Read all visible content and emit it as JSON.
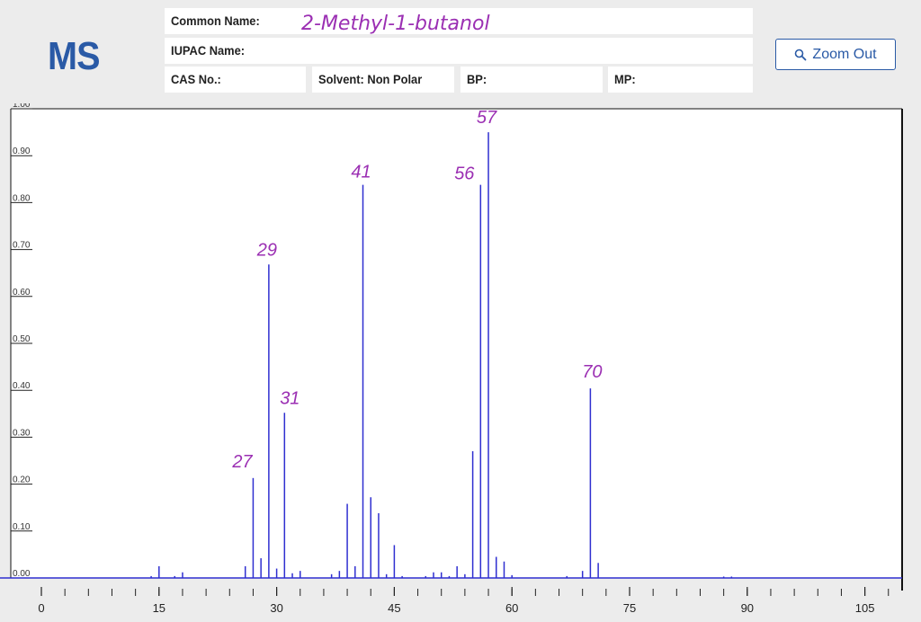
{
  "header": {
    "logo": "MS",
    "common_name_label": "Common Name:",
    "common_name_value": "2-Methyl-1-butanol",
    "iupac_label": "IUPAC Name:",
    "cas_label": "CAS No.:",
    "solvent_label": "Solvent: Non Polar",
    "bp_label": "BP:",
    "mp_label": "MP:"
  },
  "toolbar": {
    "zoom_out_label": "Zoom Out",
    "zoom_icon": "search-icon"
  },
  "chart_data": {
    "type": "bar",
    "title": "",
    "xlabel": "",
    "ylabel": "",
    "xlim": [
      0,
      110
    ],
    "ylim": [
      0,
      1.0
    ],
    "x_ticks": [
      0,
      15,
      30,
      45,
      60,
      75,
      90,
      105
    ],
    "y_ticks": [
      "0.00",
      "0.10",
      "0.20",
      "0.30",
      "0.40",
      "0.50",
      "0.60",
      "0.70",
      "0.80",
      "0.90",
      "1.00"
    ],
    "color": "#2f2fd0",
    "peaks": [
      {
        "mz": 14,
        "intensity": 0.004
      },
      {
        "mz": 15,
        "intensity": 0.025
      },
      {
        "mz": 17,
        "intensity": 0.004
      },
      {
        "mz": 18,
        "intensity": 0.012
      },
      {
        "mz": 26,
        "intensity": 0.025
      },
      {
        "mz": 27,
        "intensity": 0.213
      },
      {
        "mz": 28,
        "intensity": 0.042
      },
      {
        "mz": 29,
        "intensity": 0.668
      },
      {
        "mz": 30,
        "intensity": 0.02
      },
      {
        "mz": 31,
        "intensity": 0.352
      },
      {
        "mz": 32,
        "intensity": 0.01
      },
      {
        "mz": 33,
        "intensity": 0.015
      },
      {
        "mz": 37,
        "intensity": 0.008
      },
      {
        "mz": 38,
        "intensity": 0.015
      },
      {
        "mz": 39,
        "intensity": 0.158
      },
      {
        "mz": 40,
        "intensity": 0.025
      },
      {
        "mz": 41,
        "intensity": 0.838
      },
      {
        "mz": 42,
        "intensity": 0.172
      },
      {
        "mz": 43,
        "intensity": 0.138
      },
      {
        "mz": 44,
        "intensity": 0.008
      },
      {
        "mz": 45,
        "intensity": 0.07
      },
      {
        "mz": 46,
        "intensity": 0.004
      },
      {
        "mz": 49,
        "intensity": 0.004
      },
      {
        "mz": 50,
        "intensity": 0.012
      },
      {
        "mz": 51,
        "intensity": 0.012
      },
      {
        "mz": 52,
        "intensity": 0.004
      },
      {
        "mz": 53,
        "intensity": 0.025
      },
      {
        "mz": 54,
        "intensity": 0.008
      },
      {
        "mz": 55,
        "intensity": 0.27
      },
      {
        "mz": 56,
        "intensity": 0.838
      },
      {
        "mz": 57,
        "intensity": 0.95
      },
      {
        "mz": 58,
        "intensity": 0.045
      },
      {
        "mz": 59,
        "intensity": 0.035
      },
      {
        "mz": 60,
        "intensity": 0.006
      },
      {
        "mz": 67,
        "intensity": 0.004
      },
      {
        "mz": 69,
        "intensity": 0.015
      },
      {
        "mz": 70,
        "intensity": 0.404
      },
      {
        "mz": 71,
        "intensity": 0.032
      },
      {
        "mz": 87,
        "intensity": 0.003
      },
      {
        "mz": 88,
        "intensity": 0.003
      }
    ],
    "annotations": [
      {
        "mz": 27,
        "text": "27"
      },
      {
        "mz": 29,
        "text": "29"
      },
      {
        "mz": 31,
        "text": "31"
      },
      {
        "mz": 41,
        "text": "41"
      },
      {
        "mz": 56,
        "text": "56"
      },
      {
        "mz": 57,
        "text": "57"
      },
      {
        "mz": 70,
        "text": "70"
      }
    ]
  }
}
